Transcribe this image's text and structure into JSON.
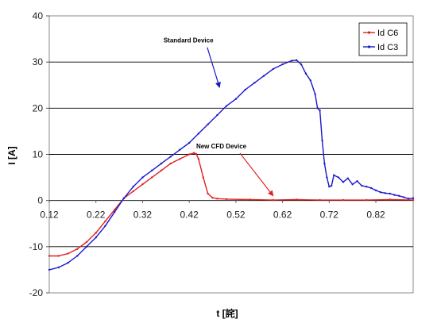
{
  "chart_data": {
    "type": "line",
    "title": "",
    "xlabel": "t [詫]",
    "ylabel": "I [A]",
    "xlim": [
      0.12,
      0.9
    ],
    "ylim": [
      -20,
      40
    ],
    "x_ticks": [
      0.12,
      0.22,
      0.32,
      0.42,
      0.52,
      0.62,
      0.72,
      0.82
    ],
    "x_tick_labels": [
      "0.12",
      "0.22",
      "0.32",
      "0.42",
      "0.52",
      "0.62",
      "0.72",
      "0.82"
    ],
    "y_ticks": [
      -20,
      -10,
      0,
      10,
      20,
      30,
      40
    ],
    "y_tick_labels": [
      "-20",
      "-10",
      "0",
      "10",
      "20",
      "30",
      "40"
    ],
    "grid": "horizontal",
    "legend_position": "top-right",
    "series": [
      {
        "name": "Id C6",
        "color": "#e02020",
        "x": [
          0.12,
          0.14,
          0.16,
          0.18,
          0.2,
          0.22,
          0.24,
          0.26,
          0.28,
          0.3,
          0.32,
          0.34,
          0.36,
          0.38,
          0.4,
          0.42,
          0.43,
          0.435,
          0.44,
          0.45,
          0.46,
          0.47,
          0.48,
          0.5,
          0.55,
          0.6,
          0.65,
          0.7,
          0.75,
          0.8,
          0.85,
          0.9
        ],
        "y": [
          -12,
          -12,
          -11.5,
          -10.5,
          -9,
          -7,
          -4.5,
          -2,
          0.5,
          2,
          3.5,
          5,
          6.5,
          8,
          9,
          10,
          10.3,
          10.1,
          9,
          5,
          1.5,
          0.6,
          0.4,
          0.3,
          0.2,
          0.1,
          0.2,
          0.1,
          0.1,
          0.1,
          0.2,
          0.1
        ]
      },
      {
        "name": "Id C3",
        "color": "#1a1acc",
        "x": [
          0.12,
          0.14,
          0.16,
          0.18,
          0.2,
          0.22,
          0.24,
          0.26,
          0.28,
          0.3,
          0.32,
          0.34,
          0.36,
          0.38,
          0.4,
          0.42,
          0.44,
          0.46,
          0.48,
          0.5,
          0.52,
          0.54,
          0.56,
          0.58,
          0.6,
          0.62,
          0.64,
          0.65,
          0.66,
          0.67,
          0.68,
          0.69,
          0.695,
          0.7,
          0.705,
          0.71,
          0.715,
          0.72,
          0.725,
          0.73,
          0.74,
          0.75,
          0.76,
          0.77,
          0.78,
          0.79,
          0.8,
          0.81,
          0.82,
          0.83,
          0.84,
          0.85,
          0.86,
          0.87,
          0.88,
          0.89,
          0.9
        ],
        "y": [
          -15,
          -14.5,
          -13.5,
          -12,
          -10,
          -8,
          -5.5,
          -2.5,
          0.5,
          3,
          5,
          6.5,
          8,
          9.5,
          11,
          12.5,
          14.5,
          16.5,
          18.5,
          20.5,
          22,
          24,
          25.5,
          27,
          28.5,
          29.5,
          30.3,
          30.4,
          29.5,
          27.5,
          26,
          23,
          20,
          19.5,
          13,
          8,
          5,
          3,
          3.2,
          5.5,
          5,
          4,
          4.8,
          3.5,
          4.2,
          3.2,
          3,
          2.7,
          2.2,
          1.8,
          1.6,
          1.5,
          1.2,
          1,
          0.7,
          0.4,
          0.5
        ]
      }
    ],
    "annotations": [
      {
        "text": "Standard Device",
        "color": "#000000",
        "arrow_color": "#1a1acc",
        "x": 0.365,
        "y": 34.2,
        "arrow_to": [
          0.485,
          24.5
        ]
      },
      {
        "text": "New CFD Device",
        "color": "#000000",
        "arrow_color": "#e02020",
        "x": 0.435,
        "y": 11.3,
        "arrow_to": [
          0.6,
          1.0
        ]
      }
    ]
  }
}
